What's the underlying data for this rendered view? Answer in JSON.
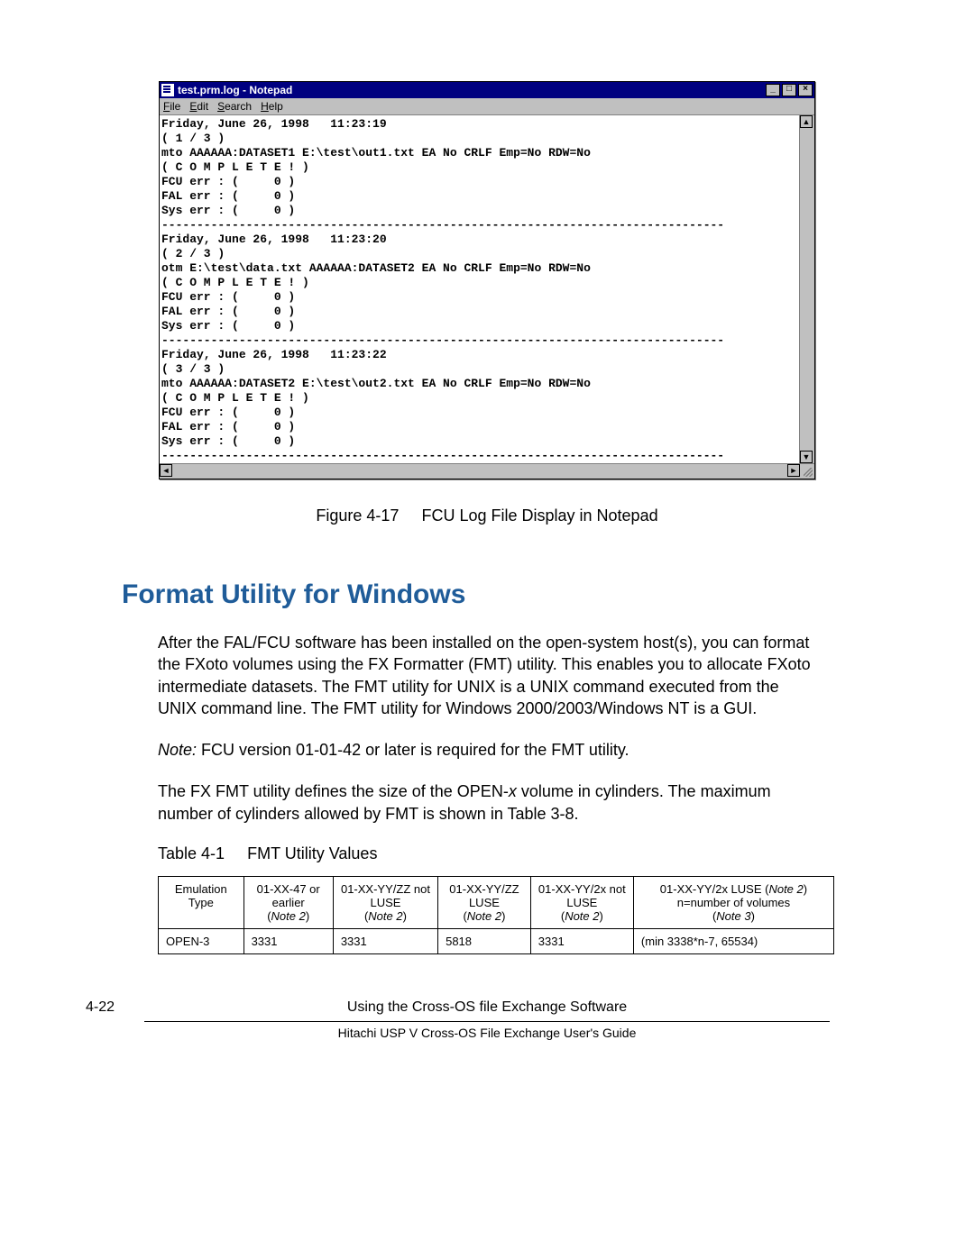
{
  "window": {
    "title": "test.prm.log - Notepad",
    "menu": {
      "file": "File",
      "edit": "Edit",
      "search": "Search",
      "help": "Help"
    },
    "buttons": {
      "min": "_",
      "max": "□",
      "close": "×"
    },
    "scroll": {
      "up": "▲",
      "down": "▼",
      "left": "◄",
      "right": "►"
    },
    "content": "Friday, June 26, 1998   11:23:19\n( 1 / 3 )\nmto AAAAAA:DATASET1 E:\\test\\out1.txt EA No CRLF Emp=No RDW=No\n( C O M P L E T E ! )\nFCU err : (     0 )\nFAL err : (     0 )\nSys err : (     0 )\n--------------------------------------------------------------------------------\nFriday, June 26, 1998   11:23:20\n( 2 / 3 )\notm E:\\test\\data.txt AAAAAA:DATASET2 EA No CRLF Emp=No RDW=No\n( C O M P L E T E ! )\nFCU err : (     0 )\nFAL err : (     0 )\nSys err : (     0 )\n--------------------------------------------------------------------------------\nFriday, June 26, 1998   11:23:22\n( 3 / 3 )\nmto AAAAAA:DATASET2 E:\\test\\out2.txt EA No CRLF Emp=No RDW=No\n( C O M P L E T E ! )\nFCU err : (     0 )\nFAL err : (     0 )\nSys err : (     0 )\n--------------------------------------------------------------------------------\n"
  },
  "caption": {
    "label": "Figure 4-17",
    "text": "FCU Log File Display in Notepad"
  },
  "section_title": "Format Utility for Windows",
  "para1": "After the FAL/FCU software has been installed on the open-system host(s), you can format the FXoto volumes using the FX Formatter (FMT) utility. This enables you to allocate FXoto intermediate datasets. The FMT utility for UNIX is a UNIX command executed from the UNIX command line. The FMT utility for Windows 2000/2003/Windows NT is a GUI.",
  "para2_label": "Note:",
  "para2": " FCU version 01-01-42 or later is required for the FMT utility.",
  "para3a": "The FX FMT utility defines the size of the OPEN-",
  "para3x": "x",
  "para3b": " volume in cylinders. The maximum number of cylinders allowed by FMT is shown in Table 3-8.",
  "table_caption": {
    "label": "Table 4-1",
    "text": "FMT Utility Values"
  },
  "table": {
    "headers": {
      "c0": "Emulation Type",
      "c1a": "01-XX-47 or earlier",
      "c1n": "Note 2",
      "c2a": "01-XX-YY/ZZ not LUSE",
      "c2n": "Note 2",
      "c3a": "01-XX-YY/ZZ LUSE",
      "c3n": "Note 2",
      "c4a": "01-XX-YY/2x not LUSE",
      "c4n": "Note 2",
      "c5a": "01-XX-YY/2x LUSE (",
      "c5n1": "Note 2",
      "c5b": ") n=number of volumes",
      "c5n2": "Note 3"
    },
    "row": {
      "c0": "OPEN-3",
      "c1": "3331",
      "c2": "3331",
      "c3": "5818",
      "c4": "3331",
      "c5": "(min 3338*n-7, 65534)"
    }
  },
  "footer": {
    "page": "4-22",
    "line1": "Using the Cross-OS file Exchange Software",
    "line2": "Hitachi USP V Cross-OS File Exchange User's Guide"
  }
}
